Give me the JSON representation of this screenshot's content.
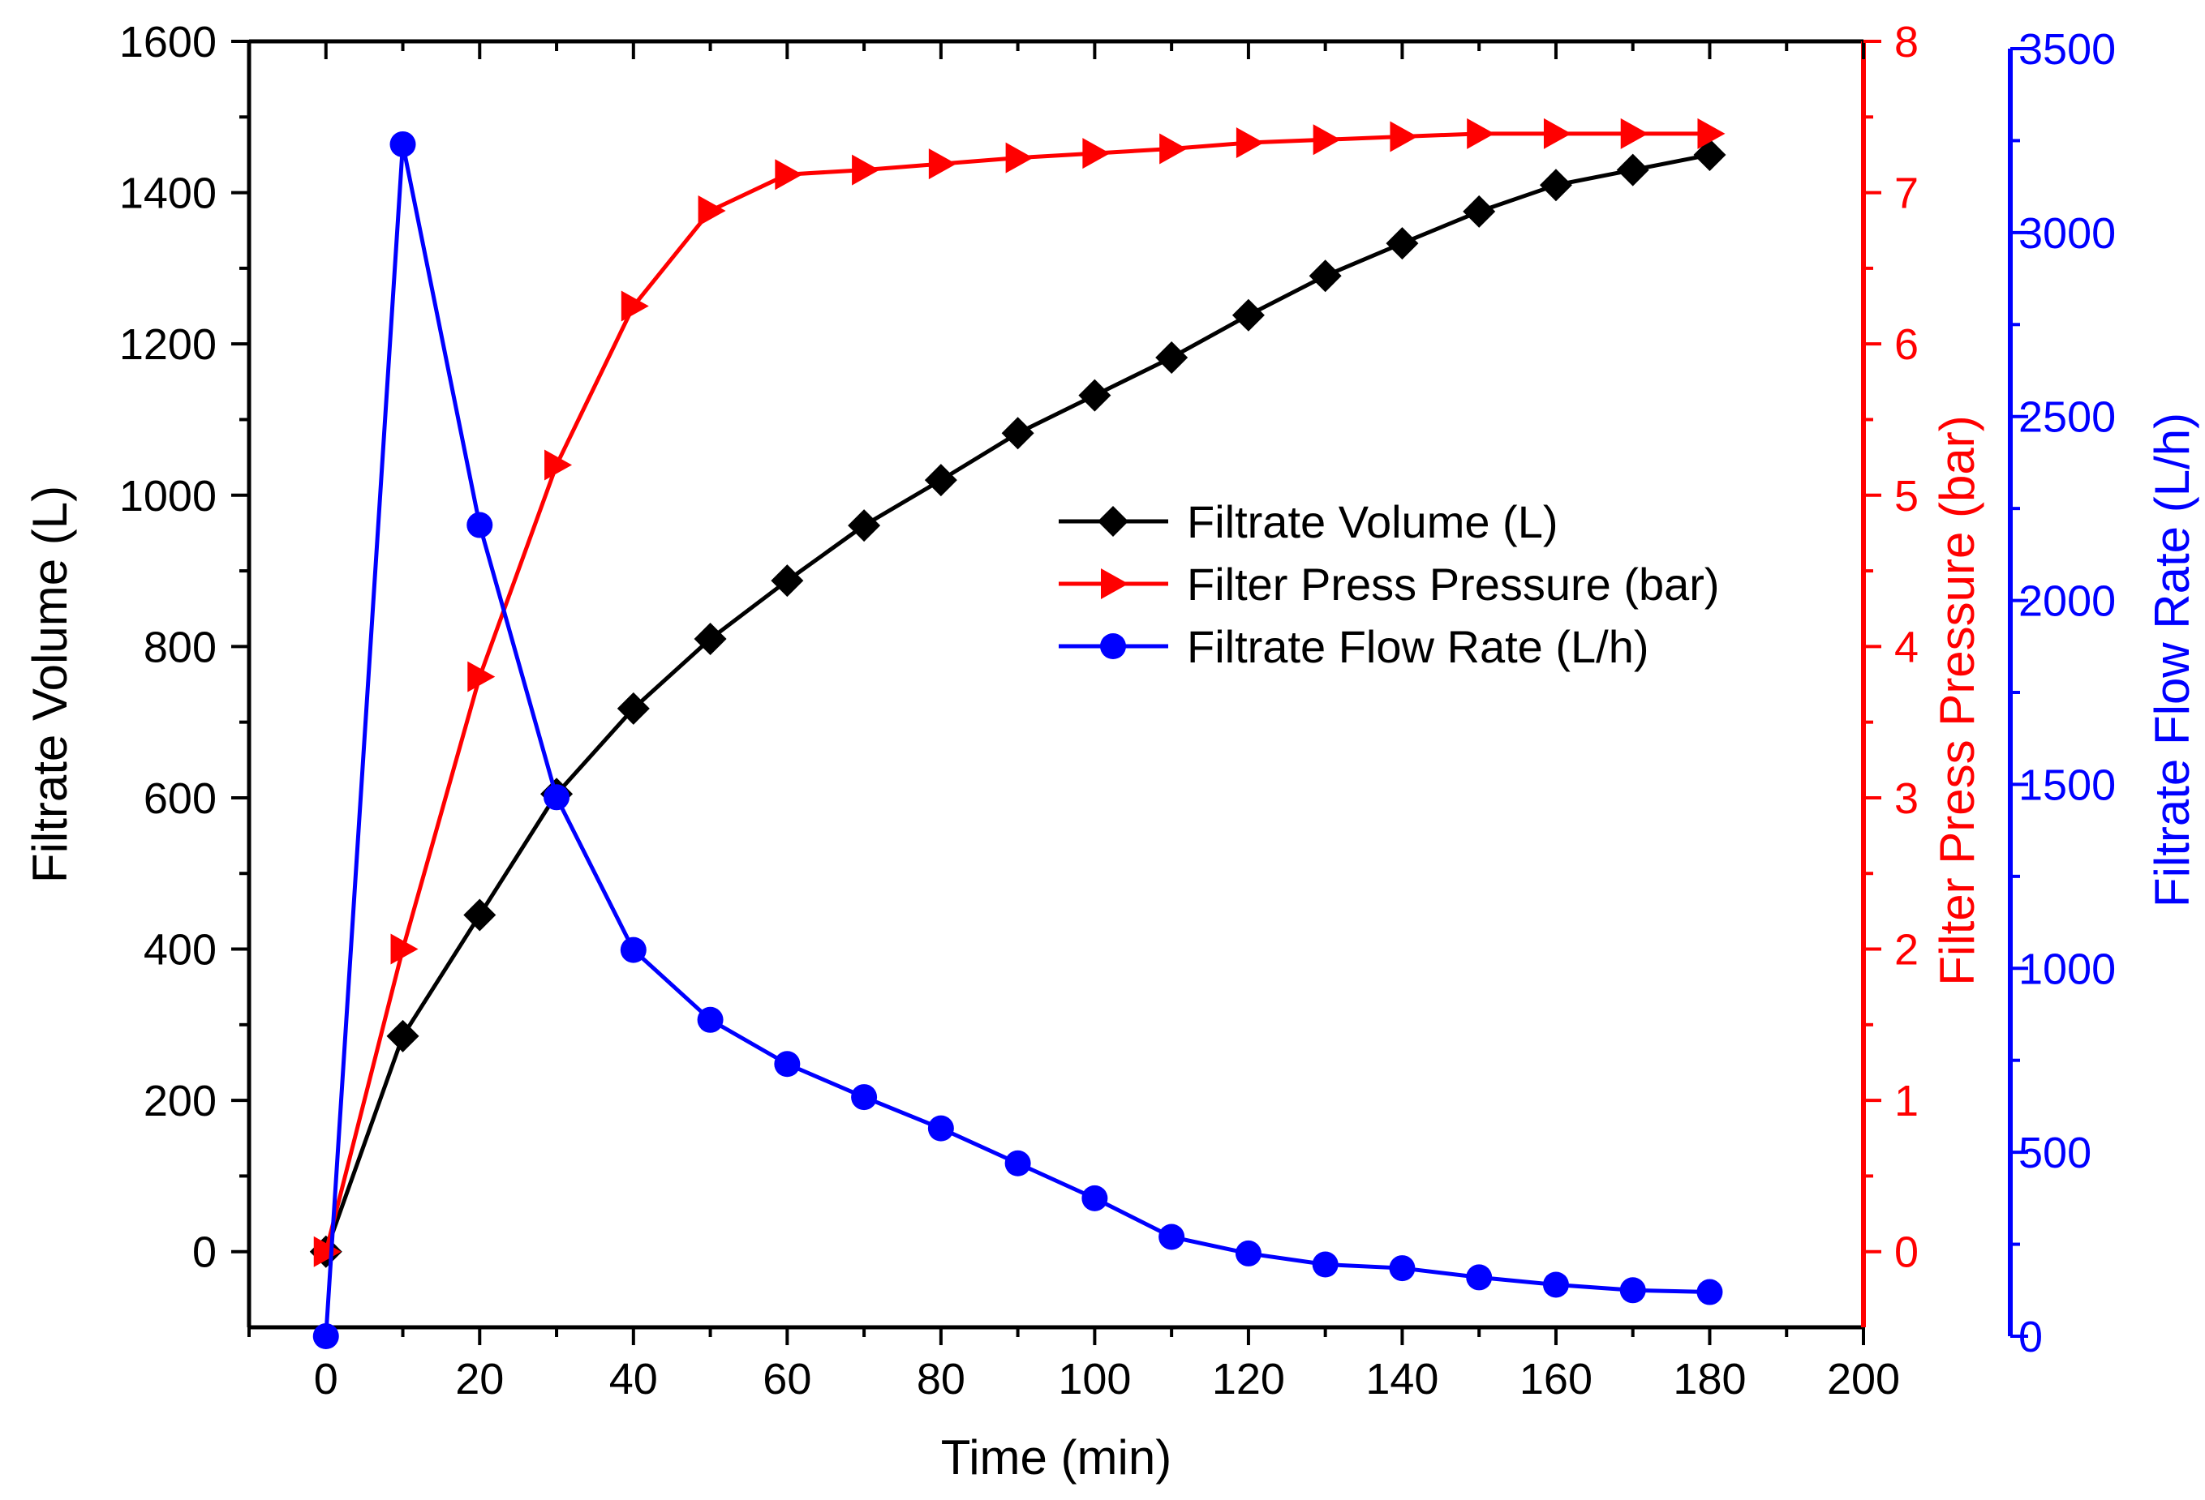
{
  "chart_data": {
    "type": "line",
    "title": "",
    "xlabel": "Time (min)",
    "xlim": [
      -10,
      200
    ],
    "xticks": [
      "0",
      "20",
      "40",
      "60",
      "80",
      "100",
      "120",
      "140",
      "160",
      "180",
      "200"
    ],
    "x": [
      0,
      10,
      20,
      30,
      40,
      50,
      60,
      70,
      80,
      90,
      100,
      110,
      120,
      130,
      140,
      150,
      160,
      170,
      180
    ],
    "axes": {
      "left": {
        "label": "Filtrate Volume (L)",
        "ylim": [
          -100,
          1600
        ],
        "ticks": [
          "0",
          "200",
          "400",
          "600",
          "800",
          "1000",
          "1200",
          "1400",
          "1600"
        ],
        "color": "#000000"
      },
      "right1": {
        "label": "Filter Press Pressure (bar)",
        "ylim": [
          -0.5,
          8
        ],
        "ticks": [
          "0",
          "1",
          "2",
          "3",
          "4",
          "5",
          "6",
          "7",
          "8"
        ],
        "color": "#ff0000"
      },
      "right2": {
        "label": "Filtrate Flow Rate (L/h)",
        "ylim": [
          0,
          3500
        ],
        "ticks": [
          "0",
          "500",
          "1000",
          "1500",
          "2000",
          "2500",
          "3000",
          "3500"
        ],
        "color": "#0000ff"
      }
    },
    "series": [
      {
        "name": "Filtrate Volume (L)",
        "axis": "left",
        "marker": "diamond",
        "color": "#000000",
        "values": [
          0,
          285,
          445,
          605,
          718,
          810,
          887,
          960,
          1020,
          1082,
          1132,
          1182,
          1238,
          1290,
          1333,
          1375,
          1410,
          1430,
          1450
        ]
      },
      {
        "name": "Filter Press Pressure (bar)",
        "axis": "right1",
        "marker": "triangle-right",
        "color": "#ff0000",
        "values": [
          0,
          2.0,
          3.8,
          5.2,
          6.25,
          6.88,
          7.12,
          7.15,
          7.19,
          7.23,
          7.26,
          7.29,
          7.33,
          7.35,
          7.37,
          7.39,
          7.39,
          7.39,
          7.39
        ]
      },
      {
        "name": "Filtrate Flow Rate (L/h)",
        "axis": "right2",
        "marker": "circle",
        "color": "#0000ff",
        "values": [
          0,
          3240,
          2205,
          1465,
          1050,
          860,
          740,
          650,
          565,
          470,
          375,
          270,
          225,
          195,
          185,
          160,
          140,
          125,
          120
        ]
      }
    ],
    "legend_position": "center-right"
  }
}
